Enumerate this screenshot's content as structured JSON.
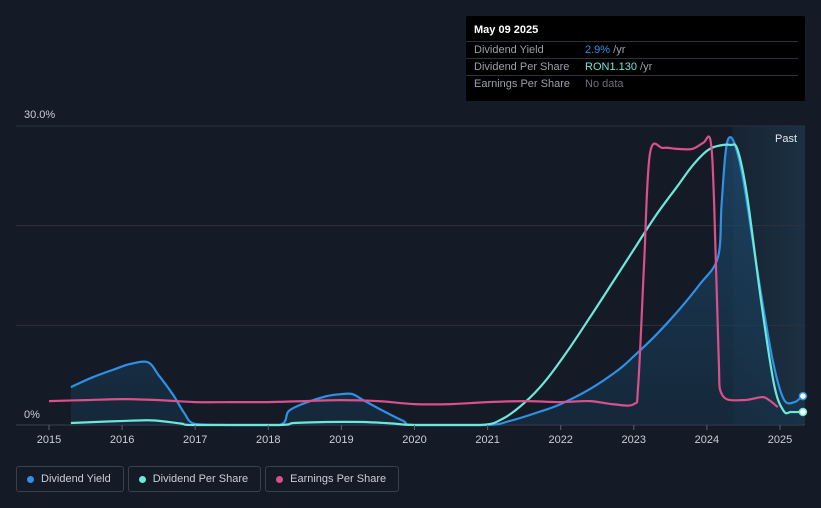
{
  "tooltip": {
    "date": "May 09 2025",
    "rows": [
      {
        "label": "Dividend Yield",
        "value": "2.9%",
        "unit": " /yr",
        "color": "#2e90e6"
      },
      {
        "label": "Dividend Per Share",
        "value": "RON1.130",
        "unit": " /yr",
        "color": "#6ee8d6"
      },
      {
        "label": "Earnings Per Share",
        "value": "No data",
        "unit": "",
        "color": "#6b7079"
      }
    ]
  },
  "past_label": "Past",
  "legend": [
    {
      "label": "Dividend Yield",
      "color": "#2e90e6"
    },
    {
      "label": "Dividend Per Share",
      "color": "#6ee8d6"
    },
    {
      "label": "Earnings Per Share",
      "color": "#d9508c"
    }
  ],
  "chart_data": {
    "type": "line",
    "y_tick_labels": [
      "30.0%",
      "0%"
    ],
    "ylim": [
      0,
      30
    ],
    "xlim": [
      2014.85,
      2025.33
    ],
    "x_ticks": [
      2015,
      2016,
      2017,
      2018,
      2019,
      2020,
      2021,
      2022,
      2023,
      2024,
      2025
    ],
    "x_tick_labels": [
      "2015",
      "2016",
      "2017",
      "2018",
      "2019",
      "2020",
      "2021",
      "2022",
      "2023",
      "2024",
      "2025"
    ],
    "grid": true,
    "past_region_start": 2024.35,
    "series": [
      {
        "name": "Dividend Yield",
        "color": "#2e90e6",
        "fill": true,
        "points": [
          [
            2015.3,
            3.8
          ],
          [
            2015.6,
            4.8
          ],
          [
            2015.9,
            5.6
          ],
          [
            2016.1,
            6.1
          ],
          [
            2016.35,
            6.3
          ],
          [
            2016.5,
            5.0
          ],
          [
            2016.7,
            3.0
          ],
          [
            2016.85,
            1.2
          ],
          [
            2017.0,
            0.1
          ],
          [
            2017.5,
            0
          ],
          [
            2018.15,
            0
          ],
          [
            2018.28,
            1.4
          ],
          [
            2018.5,
            2.2
          ],
          [
            2018.8,
            2.9
          ],
          [
            2019.0,
            3.1
          ],
          [
            2019.15,
            3.1
          ],
          [
            2019.3,
            2.5
          ],
          [
            2019.6,
            1.3
          ],
          [
            2019.85,
            0.4
          ],
          [
            2020.0,
            0
          ],
          [
            2021.0,
            0
          ],
          [
            2021.3,
            0.4
          ],
          [
            2021.7,
            1.3
          ],
          [
            2022.0,
            2.1
          ],
          [
            2022.4,
            3.6
          ],
          [
            2022.8,
            5.6
          ],
          [
            2023.0,
            6.9
          ],
          [
            2023.3,
            9.0
          ],
          [
            2023.6,
            11.4
          ],
          [
            2023.9,
            14.1
          ],
          [
            2024.15,
            16.8
          ],
          [
            2024.2,
            22.0
          ],
          [
            2024.25,
            27.0
          ],
          [
            2024.3,
            28.8
          ],
          [
            2024.38,
            28.2
          ],
          [
            2024.5,
            24.5
          ],
          [
            2024.7,
            15.0
          ],
          [
            2024.9,
            6.5
          ],
          [
            2025.05,
            2.6
          ],
          [
            2025.2,
            2.3
          ],
          [
            2025.3,
            2.9
          ]
        ]
      },
      {
        "name": "Dividend Per Share",
        "color": "#6ee8d6",
        "fill": false,
        "points": [
          [
            2015.3,
            0.2
          ],
          [
            2015.8,
            0.35
          ],
          [
            2016.2,
            0.45
          ],
          [
            2016.45,
            0.45
          ],
          [
            2016.8,
            0.15
          ],
          [
            2017.0,
            0
          ],
          [
            2018.15,
            0
          ],
          [
            2018.35,
            0.2
          ],
          [
            2018.8,
            0.3
          ],
          [
            2019.3,
            0.3
          ],
          [
            2019.7,
            0.15
          ],
          [
            2020.0,
            0
          ],
          [
            2020.9,
            0
          ],
          [
            2021.2,
            0.6
          ],
          [
            2021.5,
            2.2
          ],
          [
            2021.8,
            4.5
          ],
          [
            2022.1,
            7.5
          ],
          [
            2022.4,
            10.8
          ],
          [
            2022.7,
            14.2
          ],
          [
            2023.0,
            17.6
          ],
          [
            2023.3,
            21.0
          ],
          [
            2023.6,
            24.0
          ],
          [
            2023.8,
            26.0
          ],
          [
            2024.0,
            27.5
          ],
          [
            2024.15,
            28.0
          ],
          [
            2024.32,
            28.1
          ],
          [
            2024.42,
            27.6
          ],
          [
            2024.55,
            23.0
          ],
          [
            2024.75,
            12.0
          ],
          [
            2024.92,
            4.0
          ],
          [
            2025.05,
            1.4
          ],
          [
            2025.15,
            1.3
          ],
          [
            2025.3,
            1.3
          ]
        ]
      },
      {
        "name": "Earnings Per Share",
        "color": "#d9508c",
        "fill": false,
        "points": [
          [
            2015.0,
            2.4
          ],
          [
            2015.5,
            2.5
          ],
          [
            2016.0,
            2.6
          ],
          [
            2016.5,
            2.5
          ],
          [
            2017.0,
            2.3
          ],
          [
            2017.5,
            2.3
          ],
          [
            2018.0,
            2.3
          ],
          [
            2018.5,
            2.4
          ],
          [
            2019.0,
            2.5
          ],
          [
            2019.5,
            2.4
          ],
          [
            2020.0,
            2.1
          ],
          [
            2020.5,
            2.1
          ],
          [
            2021.0,
            2.3
          ],
          [
            2021.5,
            2.4
          ],
          [
            2022.0,
            2.3
          ],
          [
            2022.4,
            2.4
          ],
          [
            2022.7,
            2.1
          ],
          [
            2023.0,
            2.1
          ],
          [
            2023.06,
            4.0
          ],
          [
            2023.14,
            16.0
          ],
          [
            2023.22,
            27.2
          ],
          [
            2023.4,
            27.8
          ],
          [
            2023.6,
            27.7
          ],
          [
            2023.8,
            27.7
          ],
          [
            2023.95,
            28.3
          ],
          [
            2024.05,
            28.5
          ],
          [
            2024.1,
            22.0
          ],
          [
            2024.16,
            7.0
          ],
          [
            2024.21,
            3.0
          ],
          [
            2024.5,
            2.5
          ],
          [
            2024.75,
            2.8
          ],
          [
            2024.85,
            2.5
          ],
          [
            2024.97,
            1.8
          ]
        ]
      }
    ]
  }
}
